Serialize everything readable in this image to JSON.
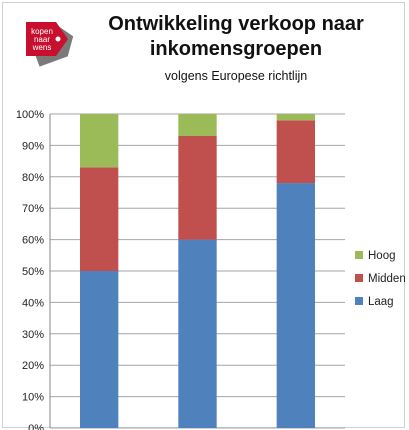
{
  "header": {
    "title": "Ontwikkeling verkoop naar inkomensgroepen",
    "subtitle": "volgens Europese richtlijn",
    "logo_text": [
      "kopen",
      "naar",
      "wens"
    ]
  },
  "colors": {
    "laag": "#4f81bd",
    "midden": "#c0504d",
    "hoog": "#9bbb59",
    "logo_red": "#c8102e",
    "grid": "#a6a6a6"
  },
  "chart_data": {
    "type": "bar",
    "stacked": true,
    "categories": [
      "",
      "",
      ""
    ],
    "series": [
      {
        "name": "Laag",
        "values": [
          50,
          60,
          78
        ]
      },
      {
        "name": "Midden",
        "values": [
          33,
          33,
          20
        ]
      },
      {
        "name": "Hoog",
        "values": [
          17,
          7,
          2
        ]
      }
    ],
    "title": "Ontwikkeling verkoop naar inkomensgroepen",
    "subtitle": "volgens Europese richtlijn",
    "ylim": [
      0,
      100
    ],
    "yticks": [
      "0%",
      "10%",
      "20%",
      "30%",
      "40%",
      "50%",
      "60%",
      "70%",
      "80%",
      "90%",
      "100%"
    ],
    "grid": true,
    "legend": "right",
    "legend_order": [
      "Hoog",
      "Midden",
      "Laag"
    ]
  }
}
